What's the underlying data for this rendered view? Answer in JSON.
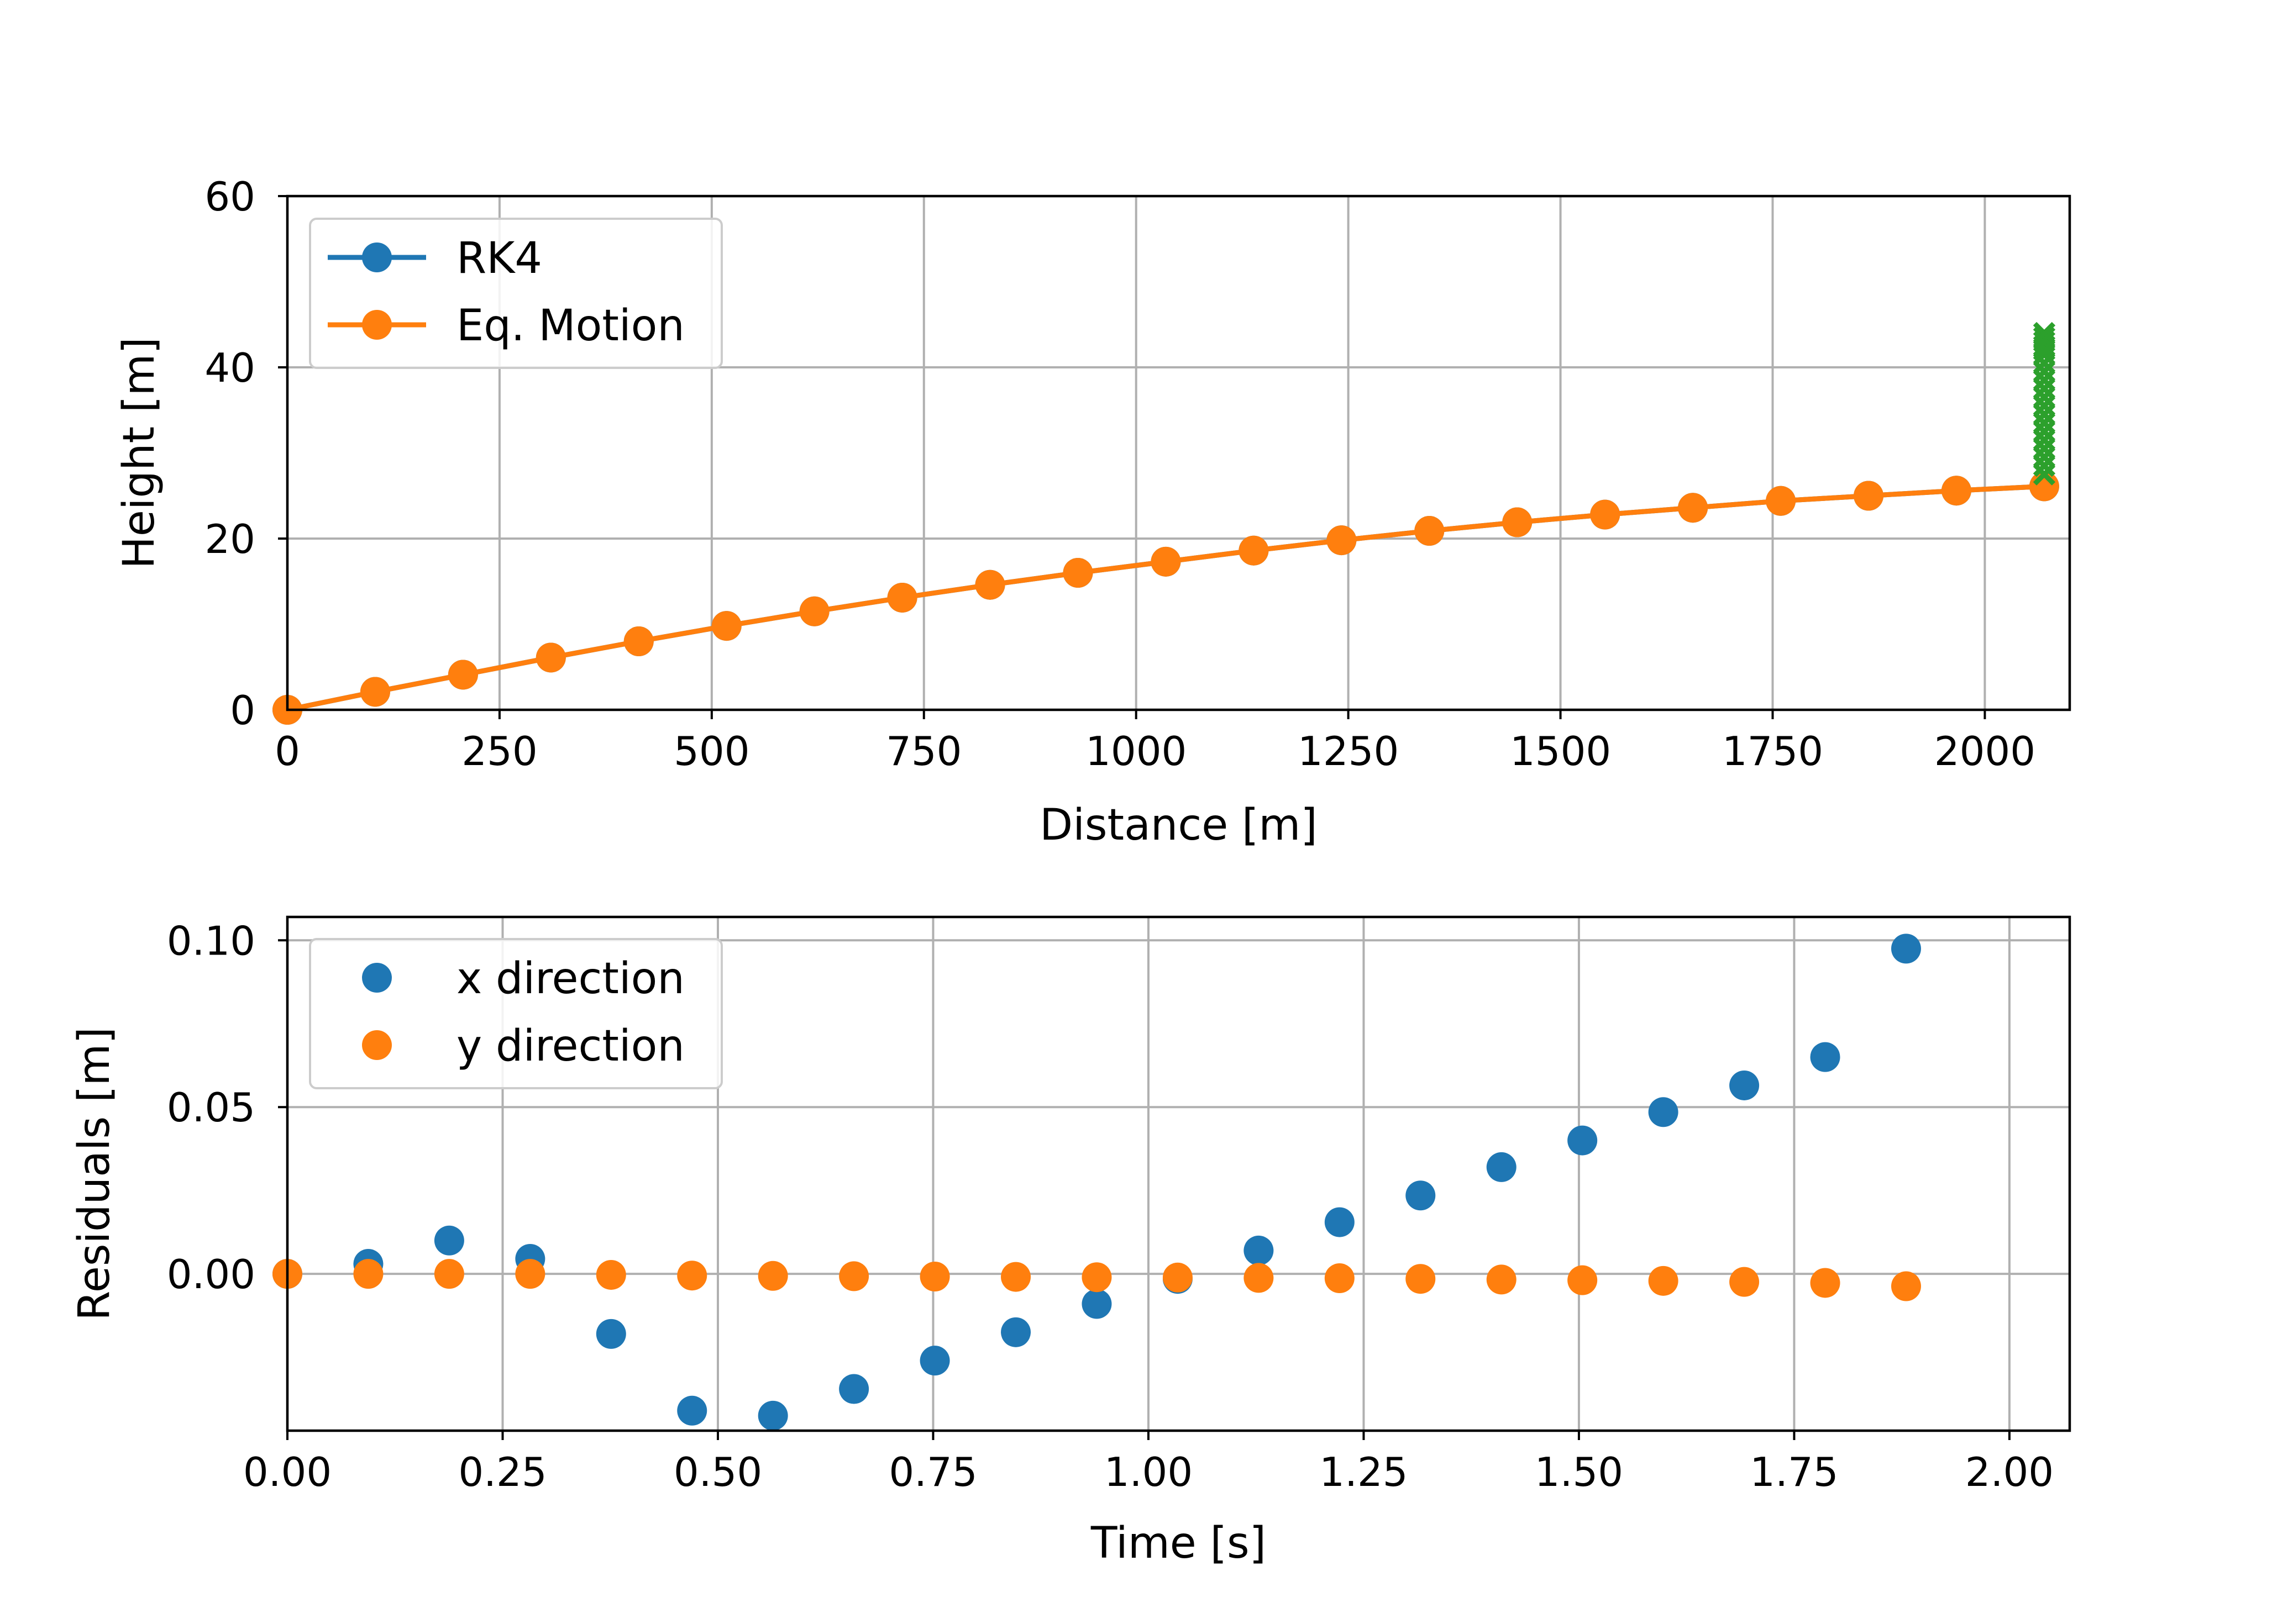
{
  "colors": {
    "rk4": "#1f77b4",
    "eq_motion": "#ff7f0e",
    "green_markers": "#2ca02c",
    "grid": "#b0b0b0",
    "legend_edge": "#cccccc"
  },
  "chart_data": [
    {
      "type": "line",
      "xlabel": "Distance [m]",
      "ylabel": "Height [m]",
      "xlim": [
        0,
        2100
      ],
      "ylim": [
        0,
        60
      ],
      "x_ticks": [
        0,
        250,
        500,
        750,
        1000,
        1250,
        1500,
        1750,
        2000
      ],
      "x_tick_labels": [
        "0",
        "250",
        "500",
        "750",
        "1000",
        "1250",
        "1500",
        "1750",
        "2000"
      ],
      "y_ticks": [
        0,
        20,
        40,
        60
      ],
      "y_tick_labels": [
        "0",
        "20",
        "40",
        "60"
      ],
      "grid": true,
      "legend_position": "top-left",
      "series": [
        {
          "name": "RK4",
          "color": "#1f77b4",
          "marker": "circle",
          "line": true,
          "x": [
            0,
            103.5,
            207,
            310.5,
            414,
            517.5,
            621,
            724.5,
            828,
            931.5,
            1035,
            1138.5,
            1242,
            1345.5,
            1449,
            1552.5,
            1656,
            1759.5,
            1863,
            1966.5,
            2070
          ],
          "y": [
            0,
            2.1,
            4.1,
            6.1,
            8.0,
            9.8,
            11.5,
            13.1,
            14.6,
            16.0,
            17.3,
            18.6,
            19.8,
            20.9,
            21.9,
            22.8,
            23.6,
            24.4,
            25.0,
            25.6,
            26.1
          ]
        },
        {
          "name": "Eq. Motion",
          "color": "#ff7f0e",
          "marker": "circle",
          "line": true,
          "x": [
            0,
            103.5,
            207,
            310.5,
            414,
            517.5,
            621,
            724.5,
            828,
            931.5,
            1035,
            1138.5,
            1242,
            1345.5,
            1449,
            1552.5,
            1656,
            1759.5,
            1863,
            1966.5,
            2070
          ],
          "y": [
            0,
            2.1,
            4.1,
            6.1,
            8.0,
            9.8,
            11.5,
            13.1,
            14.6,
            16.0,
            17.3,
            18.6,
            19.8,
            20.9,
            21.9,
            22.8,
            23.6,
            24.4,
            25.0,
            25.6,
            26.1
          ]
        },
        {
          "color": "#2ca02c",
          "marker": "x",
          "line": false,
          "x": [
            2070,
            2070,
            2070,
            2070,
            2070,
            2070,
            2070,
            2070,
            2070,
            2070,
            2070,
            2070,
            2070,
            2070,
            2070,
            2070,
            2070,
            2070,
            2070,
            2070
          ],
          "y": [
            27.5,
            28.5,
            29.5,
            30.5,
            31.5,
            32.5,
            33.5,
            34.5,
            35.5,
            36.5,
            37.5,
            38.5,
            39.5,
            40.5,
            41.5,
            42.0,
            42.5,
            43.0,
            43.5,
            44.0
          ]
        }
      ]
    },
    {
      "type": "scatter",
      "xlabel": "Time [s]",
      "ylabel": "Residuals [m]",
      "xlim": [
        0,
        2.07
      ],
      "ylim": [
        -0.047,
        0.107
      ],
      "x_ticks": [
        0,
        0.25,
        0.5,
        0.75,
        1.0,
        1.25,
        1.5,
        1.75,
        2.0
      ],
      "x_tick_labels": [
        "0.00",
        "0.25",
        "0.50",
        "0.75",
        "1.00",
        "1.25",
        "1.50",
        "1.75",
        "2.00"
      ],
      "y_ticks": [
        0,
        0.05,
        0.1
      ],
      "y_tick_labels": [
        "0.00",
        "0.05",
        "0.10"
      ],
      "grid": true,
      "legend_position": "top-left",
      "series": [
        {
          "name": "x direction",
          "color": "#1f77b4",
          "marker": "circle",
          "x": [
            0,
            0.094,
            0.188,
            0.282,
            0.376,
            0.47,
            0.564,
            0.658,
            0.752,
            0.846,
            0.94,
            1.034,
            1.128,
            1.222,
            1.316,
            1.41,
            1.504,
            1.598,
            1.692,
            1.786,
            1.88
          ],
          "y": [
            0,
            0.003,
            0.01,
            0.0045,
            -0.018,
            -0.041,
            -0.0425,
            -0.0345,
            -0.026,
            -0.0175,
            -0.009,
            -0.0015,
            0.007,
            0.0155,
            0.0235,
            0.032,
            0.04,
            0.0485,
            0.0565,
            0.065,
            0.0975
          ]
        },
        {
          "name": "y direction",
          "color": "#ff7f0e",
          "marker": "circle",
          "x": [
            0,
            0.094,
            0.188,
            0.282,
            0.376,
            0.47,
            0.564,
            0.658,
            0.752,
            0.846,
            0.94,
            1.034,
            1.128,
            1.222,
            1.316,
            1.41,
            1.504,
            1.598,
            1.692,
            1.786,
            1.88
          ],
          "y": [
            0,
            0,
            0,
            0,
            -0.0003,
            -0.0005,
            -0.0006,
            -0.0007,
            -0.0008,
            -0.0009,
            -0.001,
            -0.0011,
            -0.0012,
            -0.0013,
            -0.0015,
            -0.0017,
            -0.0019,
            -0.0021,
            -0.0024,
            -0.0027,
            -0.0037
          ]
        }
      ]
    }
  ]
}
